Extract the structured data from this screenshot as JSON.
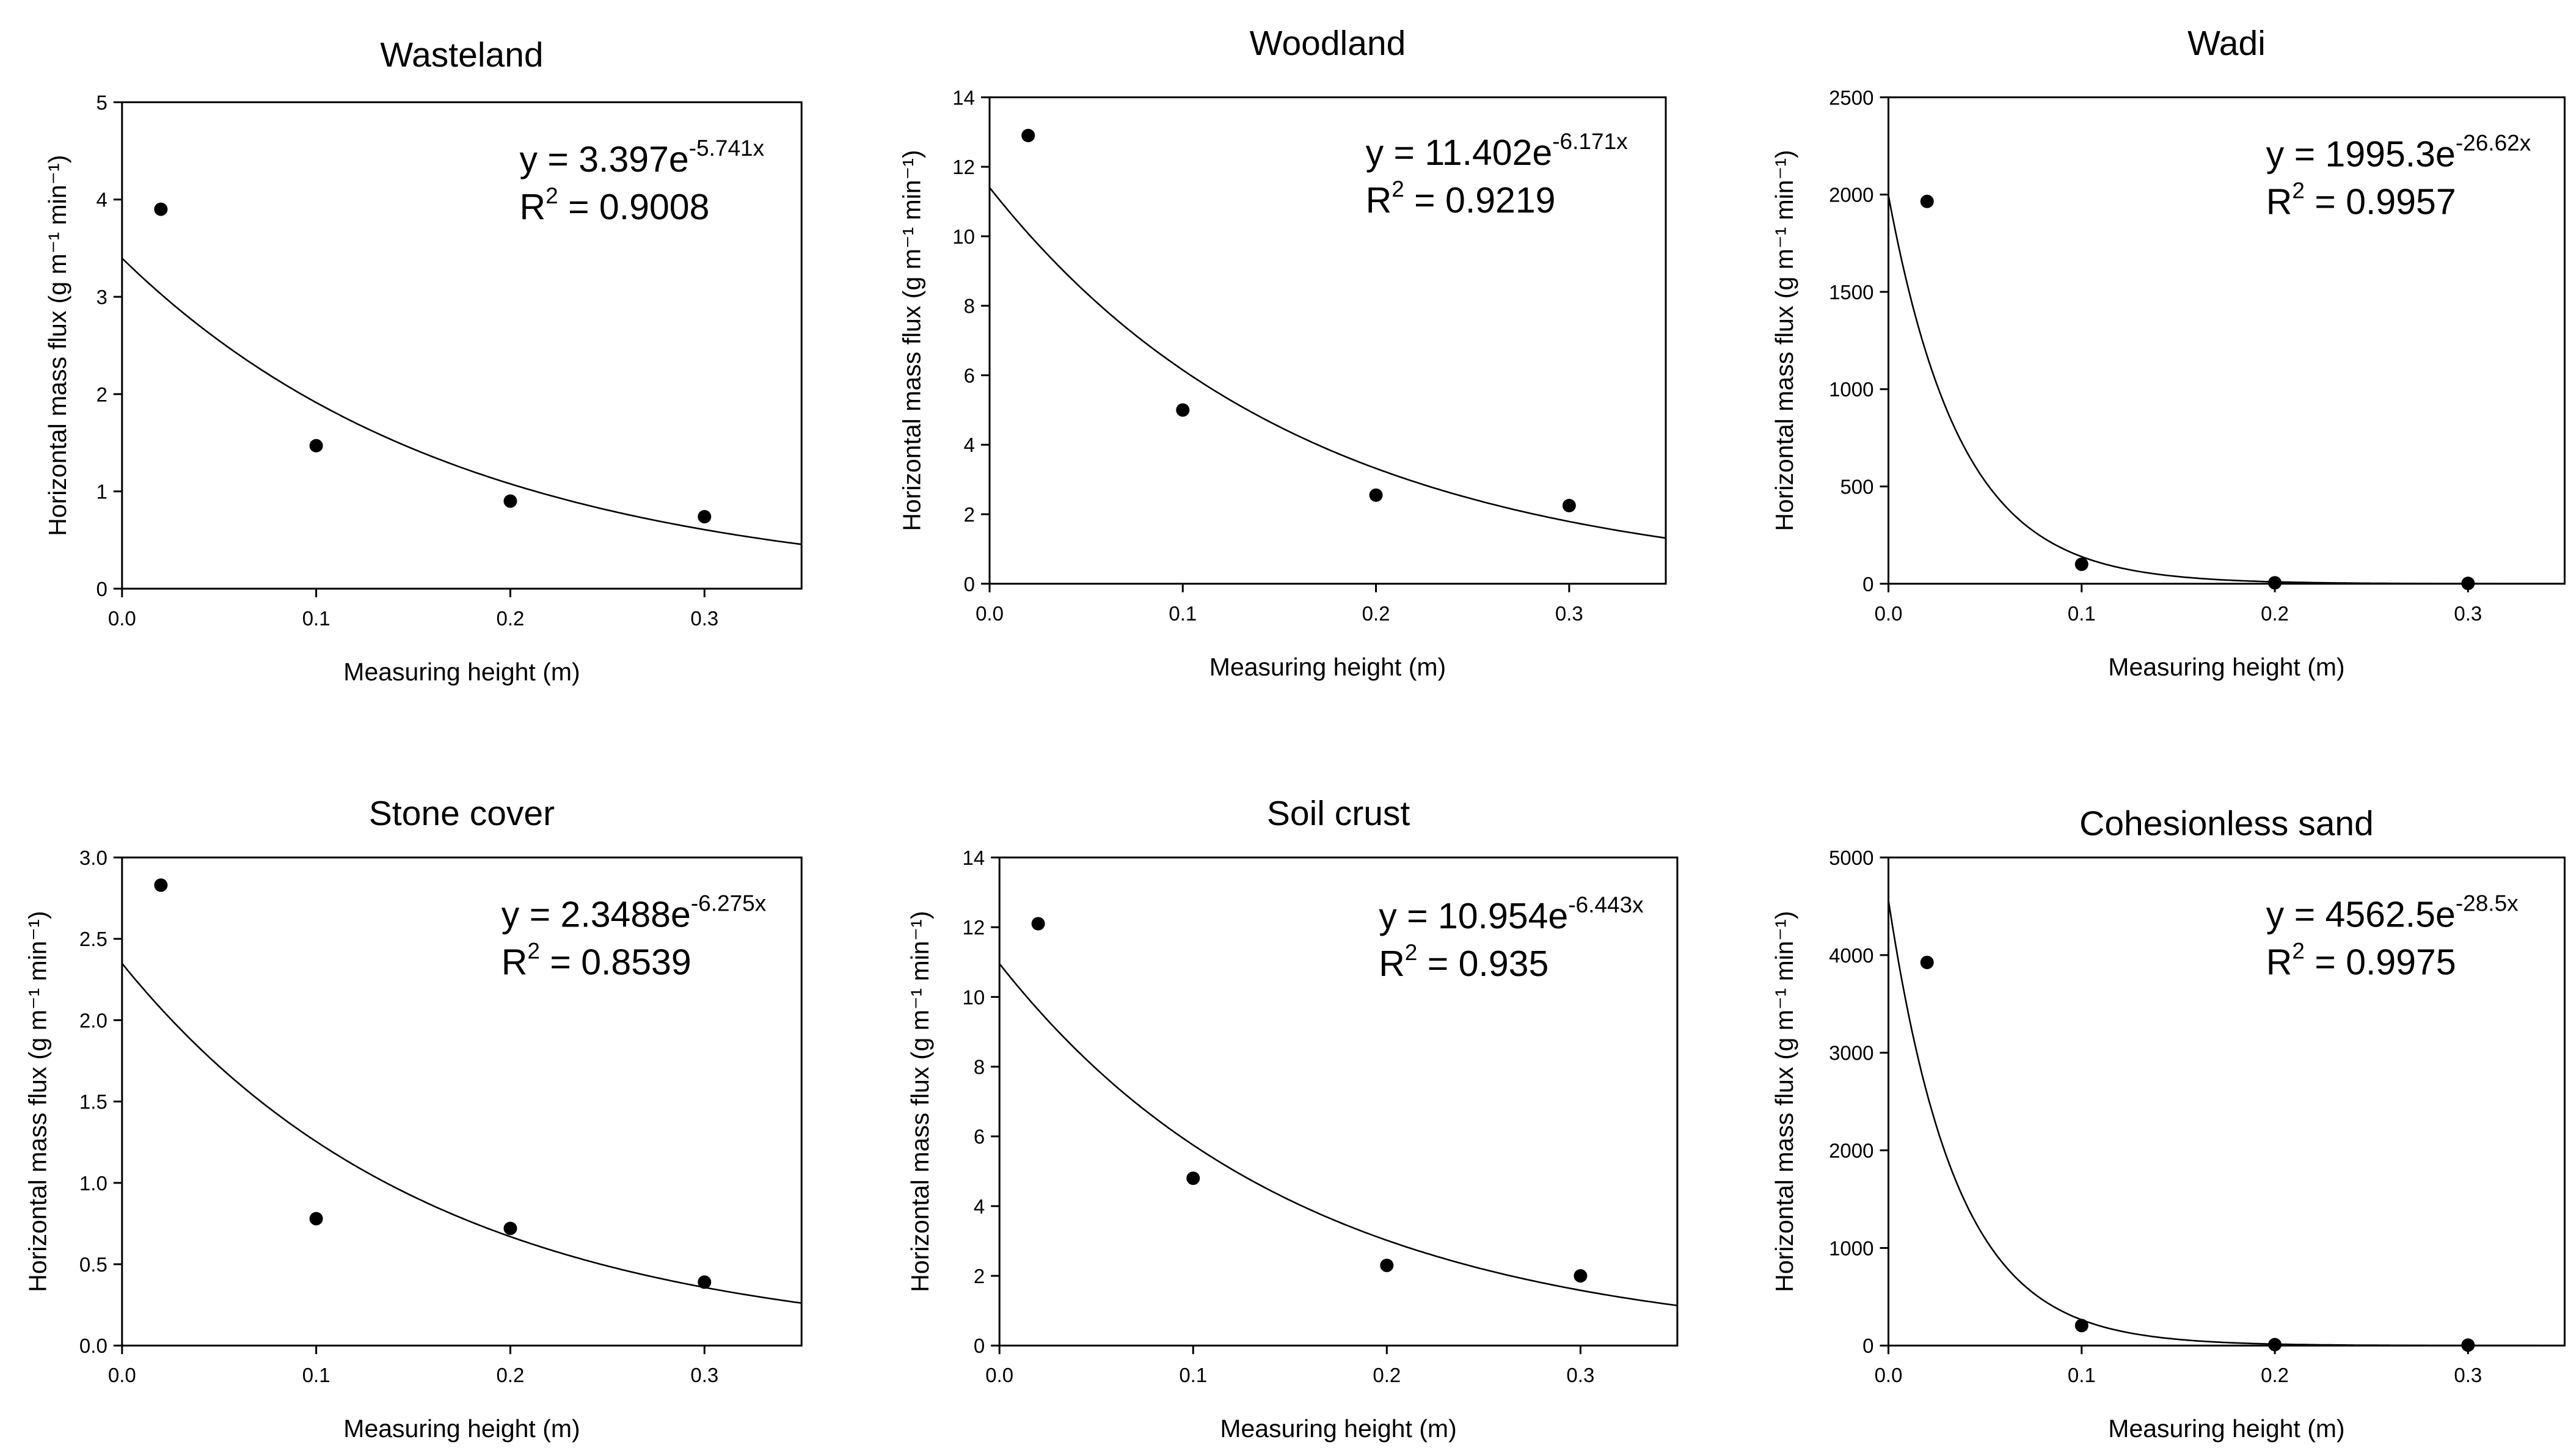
{
  "chart_data": [
    {
      "type": "scatter",
      "title": "Wasteland",
      "xlabel": "Measuring height (m)",
      "ylabel": "Horizontal mass flux (g m⁻¹ min⁻¹)",
      "xlim": [
        0,
        0.35
      ],
      "ylim": [
        0,
        5
      ],
      "x_ticks": [
        "0.0",
        "0.1",
        "0.2",
        "0.3"
      ],
      "y_ticks": [
        "0",
        "1",
        "2",
        "3",
        "4",
        "5"
      ],
      "points": [
        {
          "x": 0.02,
          "y": 3.9
        },
        {
          "x": 0.1,
          "y": 1.47
        },
        {
          "x": 0.2,
          "y": 0.9
        },
        {
          "x": 0.3,
          "y": 0.74
        }
      ],
      "fit": {
        "a": 3.397,
        "b": -5.741
      },
      "equation": {
        "prefix": "y = 3.397e",
        "exponent": "-5.741x",
        "r2_label": "R",
        "r2_sup": "2",
        "r2_value": " = 0.9008"
      }
    },
    {
      "type": "scatter",
      "title": "Woodland",
      "xlabel": "Measuring height (m)",
      "ylabel": "Horizontal mass flux (g m⁻¹ min⁻¹)",
      "xlim": [
        0,
        0.35
      ],
      "ylim": [
        0,
        14
      ],
      "x_ticks": [
        "0.0",
        "0.1",
        "0.2",
        "0.3"
      ],
      "y_ticks": [
        "0",
        "2",
        "4",
        "6",
        "8",
        "10",
        "12",
        "14"
      ],
      "points": [
        {
          "x": 0.02,
          "y": 12.9
        },
        {
          "x": 0.1,
          "y": 5.0
        },
        {
          "x": 0.2,
          "y": 2.55
        },
        {
          "x": 0.3,
          "y": 2.25
        }
      ],
      "fit": {
        "a": 11.402,
        "b": -6.171
      },
      "equation": {
        "prefix": "y = 11.402e",
        "exponent": "-6.171x",
        "r2_label": "R",
        "r2_sup": "2",
        "r2_value": " = 0.9219"
      }
    },
    {
      "type": "scatter",
      "title": "Wadi",
      "xlabel": "Measuring height (m)",
      "ylabel": "Horizontal mass flux (g m⁻¹ min⁻¹)",
      "xlim": [
        0,
        0.35
      ],
      "ylim": [
        0,
        2500
      ],
      "x_ticks": [
        "0.0",
        "0.1",
        "0.2",
        "0.3"
      ],
      "y_ticks": [
        "0",
        "500",
        "1000",
        "1500",
        "2000",
        "2500"
      ],
      "points": [
        {
          "x": 0.02,
          "y": 1965
        },
        {
          "x": 0.1,
          "y": 100
        },
        {
          "x": 0.2,
          "y": 5
        },
        {
          "x": 0.3,
          "y": 2
        }
      ],
      "fit": {
        "a": 1995.3,
        "b": -26.62
      },
      "equation": {
        "prefix": "y = 1995.3e",
        "exponent": "-26.62x",
        "r2_label": "R",
        "r2_sup": "2",
        "r2_value": " = 0.9957"
      }
    },
    {
      "type": "scatter",
      "title": "Stone cover",
      "xlabel": "Measuring height (m)",
      "ylabel": "Horizontal mass flux (g m⁻¹ min⁻¹)",
      "xlim": [
        0,
        0.35
      ],
      "ylim": [
        0,
        3
      ],
      "x_ticks": [
        "0.0",
        "0.1",
        "0.2",
        "0.3"
      ],
      "y_ticks": [
        "0.0",
        "0.5",
        "1.0",
        "1.5",
        "2.0",
        "2.5",
        "3.0"
      ],
      "points": [
        {
          "x": 0.02,
          "y": 2.83
        },
        {
          "x": 0.1,
          "y": 0.78
        },
        {
          "x": 0.2,
          "y": 0.72
        },
        {
          "x": 0.3,
          "y": 0.39
        }
      ],
      "fit": {
        "a": 2.3488,
        "b": -6.275
      },
      "equation": {
        "prefix": "y = 2.3488e",
        "exponent": "-6.275x",
        "r2_label": "R",
        "r2_sup": "2",
        "r2_value": " = 0.8539"
      }
    },
    {
      "type": "scatter",
      "title": "Soil crust",
      "xlabel": "Measuring height (m)",
      "ylabel": "Horizontal mass flux (g m⁻¹ min⁻¹)",
      "xlim": [
        0,
        0.35
      ],
      "ylim": [
        0,
        14
      ],
      "x_ticks": [
        "0.0",
        "0.1",
        "0.2",
        "0.3"
      ],
      "y_ticks": [
        "0",
        "2",
        "4",
        "6",
        "8",
        "10",
        "12",
        "14"
      ],
      "points": [
        {
          "x": 0.02,
          "y": 12.1
        },
        {
          "x": 0.1,
          "y": 4.8
        },
        {
          "x": 0.2,
          "y": 2.3
        },
        {
          "x": 0.3,
          "y": 2.0
        }
      ],
      "fit": {
        "a": 10.954,
        "b": -6.443
      },
      "equation": {
        "prefix": "y = 10.954e",
        "exponent": "-6.443x",
        "r2_label": "R",
        "r2_sup": "2",
        "r2_value": " = 0.935"
      }
    },
    {
      "type": "scatter",
      "title": "Cohesionless sand",
      "xlabel": "Measuring height (m)",
      "ylabel": "Horizontal mass flux (g m⁻¹ min⁻¹)",
      "xlim": [
        0,
        0.35
      ],
      "ylim": [
        0,
        5000
      ],
      "x_ticks": [
        "0.0",
        "0.1",
        "0.2",
        "0.3"
      ],
      "y_ticks": [
        "0",
        "1000",
        "2000",
        "3000",
        "4000",
        "5000"
      ],
      "points": [
        {
          "x": 0.02,
          "y": 3925
        },
        {
          "x": 0.1,
          "y": 205
        },
        {
          "x": 0.2,
          "y": 10
        },
        {
          "x": 0.3,
          "y": 5
        }
      ],
      "fit": {
        "a": 4562.5,
        "b": -28.5
      },
      "equation": {
        "prefix": "y = 4562.5e",
        "exponent": "-28.5x",
        "r2_label": "R",
        "r2_sup": "2",
        "r2_value": " = 0.9975"
      }
    }
  ]
}
